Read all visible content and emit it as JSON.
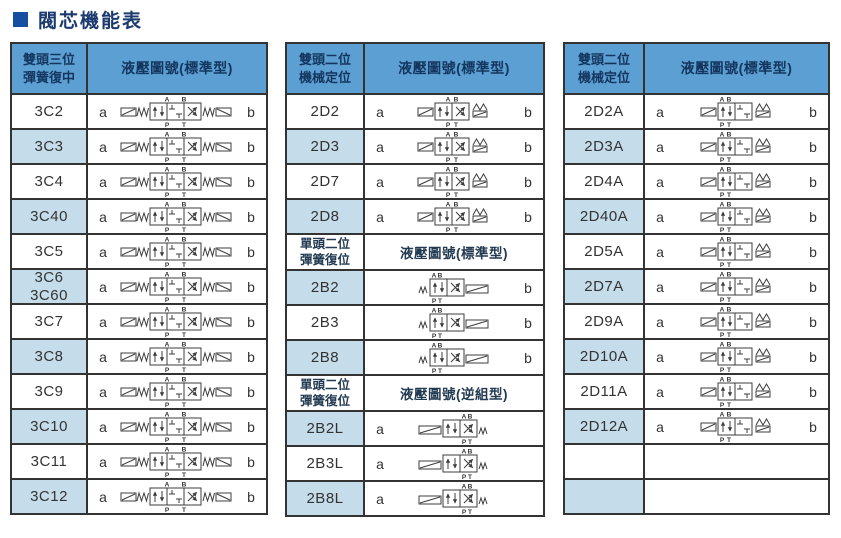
{
  "page": {
    "title": "閥芯機能表",
    "title_color": "#1b3a70",
    "title_square_color": "#164fa2"
  },
  "colors": {
    "header_bg": "#5c9fd3",
    "header_text": "#14365e",
    "shaded_cell": "#c5dcea",
    "border": "#333333",
    "symbol_stroke": "#3c3c3c",
    "body_text": "#333333"
  },
  "tables": [
    {
      "name": "valve-table-3c-double-head-3pos",
      "header": {
        "col1": "雙頭三位\n彈簧復中",
        "col2": "液壓圖號(標準型)"
      },
      "rows": [
        {
          "code": "3C2",
          "a": "a",
          "b": "b",
          "variant": "3C",
          "symbol": "valve-symbol-3pos-icon",
          "shaded": false
        },
        {
          "code": "3C3",
          "a": "a",
          "b": "b",
          "variant": "3C",
          "symbol": "valve-symbol-3pos-icon",
          "shaded": true
        },
        {
          "code": "3C4",
          "a": "a",
          "b": "b",
          "variant": "3C",
          "symbol": "valve-symbol-3pos-icon",
          "shaded": false
        },
        {
          "code": "3C40",
          "a": "a",
          "b": "b",
          "variant": "3C",
          "symbol": "valve-symbol-3pos-icon",
          "shaded": true
        },
        {
          "code": "3C5",
          "a": "a",
          "b": "b",
          "variant": "3C",
          "symbol": "valve-symbol-3pos-icon",
          "shaded": false
        },
        {
          "code": "3C6\n3C60",
          "a": "a",
          "b": "b",
          "variant": "3C",
          "symbol": "valve-symbol-3pos-icon",
          "shaded": true
        },
        {
          "code": "3C7",
          "a": "a",
          "b": "b",
          "variant": "3C",
          "symbol": "valve-symbol-3pos-icon",
          "shaded": false
        },
        {
          "code": "3C8",
          "a": "a",
          "b": "b",
          "variant": "3C",
          "symbol": "valve-symbol-3pos-icon",
          "shaded": true
        },
        {
          "code": "3C9",
          "a": "a",
          "b": "b",
          "variant": "3C",
          "symbol": "valve-symbol-3pos-icon",
          "shaded": false
        },
        {
          "code": "3C10",
          "a": "a",
          "b": "b",
          "variant": "3C",
          "symbol": "valve-symbol-3pos-icon",
          "shaded": true
        },
        {
          "code": "3C11",
          "a": "a",
          "b": "b",
          "variant": "3C",
          "symbol": "valve-symbol-3pos-icon",
          "shaded": false
        },
        {
          "code": "3C12",
          "a": "a",
          "b": "b",
          "variant": "3C",
          "symbol": "valve-symbol-3pos-icon",
          "shaded": true
        }
      ]
    },
    {
      "name": "valve-table-2d-2b-mixed",
      "header": {
        "col1": "雙頭二位\n機械定位",
        "col2": "液壓圖號(標準型)"
      },
      "rows": [
        {
          "code": "2D2",
          "a": "a",
          "b": "b",
          "variant": "2D",
          "symbol": "valve-symbol-2pos-detent-icon",
          "shaded": false
        },
        {
          "code": "2D3",
          "a": "a",
          "b": "b",
          "variant": "2D",
          "symbol": "valve-symbol-2pos-detent-icon",
          "shaded": true
        },
        {
          "code": "2D7",
          "a": "a",
          "b": "b",
          "variant": "2D",
          "symbol": "valve-symbol-2pos-detent-icon",
          "shaded": false
        },
        {
          "code": "2D8",
          "a": "a",
          "b": "b",
          "variant": "2D",
          "symbol": "valve-symbol-2pos-detent-icon",
          "shaded": true
        },
        {
          "subheader": true,
          "col1": "單頭二位\n彈簧復位",
          "col2": "液壓圖號(標準型)"
        },
        {
          "code": "2B2",
          "a": "",
          "b": "b",
          "variant": "2B",
          "symbol": "valve-symbol-2pos-spring-icon",
          "shaded": true
        },
        {
          "code": "2B3",
          "a": "",
          "b": "b",
          "variant": "2B",
          "symbol": "valve-symbol-2pos-spring-icon",
          "shaded": false
        },
        {
          "code": "2B8",
          "a": "",
          "b": "b",
          "variant": "2B",
          "symbol": "valve-symbol-2pos-spring-icon",
          "shaded": true
        },
        {
          "subheader": true,
          "col1": "單頭二位\n彈簧復位",
          "col2": "液壓圖號(逆組型)"
        },
        {
          "code": "2B2L",
          "a": "a",
          "b": "",
          "variant": "2BL",
          "symbol": "valve-symbol-2pos-spring-reverse-icon",
          "shaded": true
        },
        {
          "code": "2B3L",
          "a": "a",
          "b": "",
          "variant": "2BL",
          "symbol": "valve-symbol-2pos-spring-reverse-icon",
          "shaded": false
        },
        {
          "code": "2B8L",
          "a": "a",
          "b": "",
          "variant": "2BL",
          "symbol": "valve-symbol-2pos-spring-reverse-icon",
          "shaded": true
        }
      ]
    },
    {
      "name": "valve-table-2da-double-head-2pos",
      "header": {
        "col1": "雙頭二位\n機械定位",
        "col2": "液壓圖號(標準型)"
      },
      "rows": [
        {
          "code": "2D2A",
          "a": "a",
          "b": "b",
          "variant": "2DA",
          "symbol": "valve-symbol-2pos-detent-a-icon",
          "shaded": false
        },
        {
          "code": "2D3A",
          "a": "a",
          "b": "b",
          "variant": "2DA",
          "symbol": "valve-symbol-2pos-detent-a-icon",
          "shaded": true
        },
        {
          "code": "2D4A",
          "a": "a",
          "b": "b",
          "variant": "2DA",
          "symbol": "valve-symbol-2pos-detent-a-icon",
          "shaded": false
        },
        {
          "code": "2D40A",
          "a": "a",
          "b": "b",
          "variant": "2DA",
          "symbol": "valve-symbol-2pos-detent-a-icon",
          "shaded": true
        },
        {
          "code": "2D5A",
          "a": "a",
          "b": "b",
          "variant": "2DA",
          "symbol": "valve-symbol-2pos-detent-a-icon",
          "shaded": false
        },
        {
          "code": "2D7A",
          "a": "a",
          "b": "b",
          "variant": "2DA",
          "symbol": "valve-symbol-2pos-detent-a-icon",
          "shaded": true
        },
        {
          "code": "2D9A",
          "a": "a",
          "b": "b",
          "variant": "2DA",
          "symbol": "valve-symbol-2pos-detent-a-icon",
          "shaded": false
        },
        {
          "code": "2D10A",
          "a": "a",
          "b": "b",
          "variant": "2DA",
          "symbol": "valve-symbol-2pos-detent-a-icon",
          "shaded": true
        },
        {
          "code": "2D11A",
          "a": "a",
          "b": "b",
          "variant": "2DA",
          "symbol": "valve-symbol-2pos-detent-a-icon",
          "shaded": false
        },
        {
          "code": "2D12A",
          "a": "a",
          "b": "b",
          "variant": "2DA",
          "symbol": "valve-symbol-2pos-detent-a-icon",
          "shaded": true
        },
        {
          "empty": true,
          "shaded": false
        },
        {
          "empty": true,
          "shaded": true
        }
      ]
    }
  ]
}
